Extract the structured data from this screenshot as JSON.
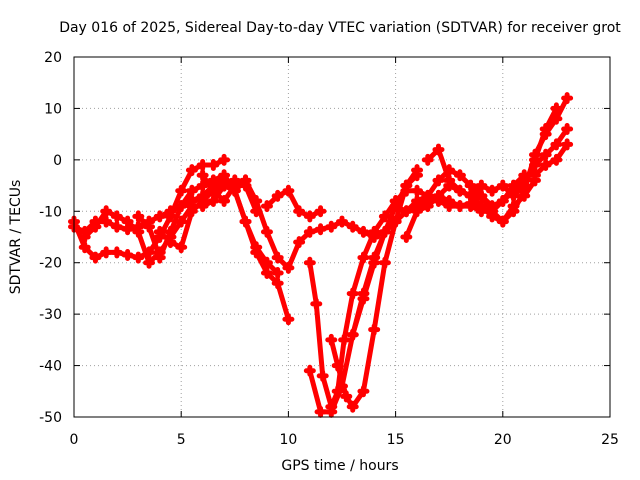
{
  "chart_data": {
    "type": "scatter",
    "title": "Day 016 of 2025, Sidereal Day-to-day VTEC variation (SDTVAR) for receiver grot",
    "xlabel": "GPS time / hours",
    "ylabel": "SDTVAR / TECUs",
    "xlim": [
      0,
      25
    ],
    "ylim": [
      -50,
      20
    ],
    "xticks": [
      "0",
      "5",
      "10",
      "15",
      "20",
      "25"
    ],
    "yticks": [
      "-50",
      "-40",
      "-30",
      "-20",
      "-10",
      "0",
      "10",
      "20"
    ],
    "grid": true,
    "marker": "+",
    "color": "#ff0000",
    "series": [
      {
        "x": [
          0.0,
          0.5,
          1.0,
          1.5,
          2.0,
          2.5,
          3.0,
          3.5,
          4.0,
          4.5,
          5.0,
          5.5,
          6.0,
          6.5,
          7.0
        ],
        "y": [
          -12,
          -17,
          -19,
          -18,
          -18,
          -18.5,
          -19,
          -18,
          -15,
          -11,
          -6,
          -2,
          -1,
          -1,
          0
        ]
      },
      {
        "x": [
          0.0,
          0.5,
          1.0,
          1.5,
          2.0,
          2.5,
          3.0,
          3.5,
          4.0,
          4.5,
          5.0,
          5.5,
          6.0,
          6.5,
          7.0,
          7.5,
          8.0,
          8.5,
          9.0,
          9.5,
          10.0
        ],
        "y": [
          -13,
          -14,
          -12,
          -12,
          -13,
          -13.5,
          -13,
          -12,
          -11,
          -10,
          -9,
          -8,
          -7,
          -5,
          -4,
          -6,
          -12,
          -18,
          -22,
          -24,
          -31
        ]
      },
      {
        "x": [
          0.5,
          1.0,
          1.5,
          2.0,
          2.5,
          3.0,
          3.5,
          4.0,
          4.5,
          5.0,
          5.5,
          6.0,
          6.5,
          7.0,
          7.5,
          8.0,
          8.5
        ],
        "y": [
          -15,
          -13,
          -10,
          -11,
          -12,
          -14,
          -20,
          -18,
          -15,
          -12,
          -9,
          -9,
          -8,
          -5,
          -4,
          -5,
          -10
        ]
      },
      {
        "x": [
          3.0,
          3.5,
          4.0,
          4.5,
          5.0,
          5.5,
          6.0,
          6.5,
          7.0,
          7.5,
          8.0,
          8.5,
          9.0,
          9.5
        ],
        "y": [
          -11,
          -13,
          -19,
          -14,
          -9,
          -6,
          -5,
          -4,
          -3,
          -6,
          -12,
          -17,
          -20,
          -22
        ]
      },
      {
        "x": [
          4.0,
          4.5,
          5.0,
          5.5,
          6.0,
          6.5,
          7.0,
          7.5,
          8.0
        ],
        "y": [
          -14,
          -16,
          -17,
          -10,
          -8,
          -6,
          -5,
          -6,
          -4
        ]
      },
      {
        "x": [
          6.0,
          6.5,
          7.0,
          7.5,
          8.0,
          8.5,
          9.0,
          9.5,
          10.0,
          10.5,
          11.0,
          11.5,
          12.0,
          12.5,
          13.0,
          13.5,
          14.0,
          14.5,
          15.0
        ],
        "y": [
          -3,
          -6,
          -8,
          -5,
          -4,
          -8,
          -14,
          -19,
          -21,
          -16,
          -14,
          -13.5,
          -13,
          -12,
          -13,
          -14,
          -15,
          -14,
          -12
        ]
      },
      {
        "x": [
          9.0,
          9.5,
          10.0,
          10.5,
          11.0,
          11.5
        ],
        "y": [
          -9,
          -7,
          -6,
          -10,
          -11,
          -10
        ]
      },
      {
        "x": [
          11.0,
          11.3,
          11.6,
          12.0,
          12.3,
          12.6,
          13.0,
          13.5,
          14.0,
          14.5,
          15.0,
          15.5,
          16.0,
          16.5,
          17.0,
          17.5,
          18.0,
          18.5,
          19.0,
          19.5,
          20.0,
          20.5,
          21.0,
          21.5,
          22.0,
          22.5,
          23.0
        ],
        "y": [
          -20,
          -28,
          -42,
          -48,
          -45,
          -35,
          -26,
          -19,
          -14,
          -11,
          -8,
          -6,
          -6,
          -7,
          -8,
          -9,
          -9,
          -8.5,
          -7,
          -9,
          -8,
          -6,
          -4,
          -1,
          1,
          3,
          6
        ]
      },
      {
        "x": [
          11.0,
          11.5,
          12.0,
          12.5,
          13.0,
          13.5,
          14.0,
          14.5,
          15.0,
          15.5,
          16.0
        ],
        "y": [
          -41,
          -49,
          -49,
          -44,
          -34,
          -27,
          -20,
          -14,
          -9,
          -5,
          -3
        ]
      },
      {
        "x": [
          12.0,
          12.3,
          12.7,
          13.0,
          13.5,
          14.0,
          14.5,
          15.0,
          15.5,
          16.0
        ],
        "y": [
          -35,
          -40,
          -46,
          -48,
          -45,
          -33,
          -20,
          -12,
          -5,
          -2
        ]
      },
      {
        "x": [
          13.0,
          13.5,
          14.0,
          14.5,
          15.0,
          15.5,
          16.0,
          16.5,
          17.0,
          17.5,
          18.0,
          18.5,
          19.0,
          19.5,
          20.0,
          20.5,
          21.0,
          21.5,
          22.0,
          22.5,
          23.0
        ],
        "y": [
          -34,
          -26,
          -19,
          -14,
          -12,
          -10,
          -9,
          -8,
          -7,
          -8,
          -9,
          -9,
          -10,
          -10,
          -8,
          -5,
          -3,
          -3,
          -1,
          0,
          3
        ]
      },
      {
        "x": [
          15.0,
          15.5,
          16.0,
          16.5,
          17.0,
          17.5,
          18.0,
          18.5,
          19.0,
          19.5,
          20.0,
          20.5,
          21.0,
          21.5,
          22.0,
          22.5,
          23.0
        ],
        "y": [
          -9,
          -10,
          -8,
          -7,
          -4,
          -2,
          -3,
          -5,
          -7,
          -10,
          -12,
          -10,
          -6,
          1,
          5,
          8,
          12
        ]
      },
      {
        "x": [
          15.5,
          16.0,
          16.5,
          17.0,
          17.5,
          18.0,
          18.5,
          19.0,
          19.5,
          20.0,
          20.5,
          21.0,
          21.5,
          22.0,
          22.5
        ],
        "y": [
          -15,
          -10,
          -9,
          -7,
          -5,
          -6,
          -7,
          -5,
          -6,
          -5,
          -7,
          -5,
          0,
          6,
          10
        ]
      },
      {
        "x": [
          16.5,
          17.0,
          17.5,
          18.0,
          18.5,
          19.0,
          19.5,
          20.0,
          20.5,
          21.0,
          21.5
        ],
        "y": [
          0,
          2,
          -4,
          -6,
          -7,
          -9,
          -11,
          -12,
          -9,
          -7,
          -4
        ]
      }
    ]
  }
}
